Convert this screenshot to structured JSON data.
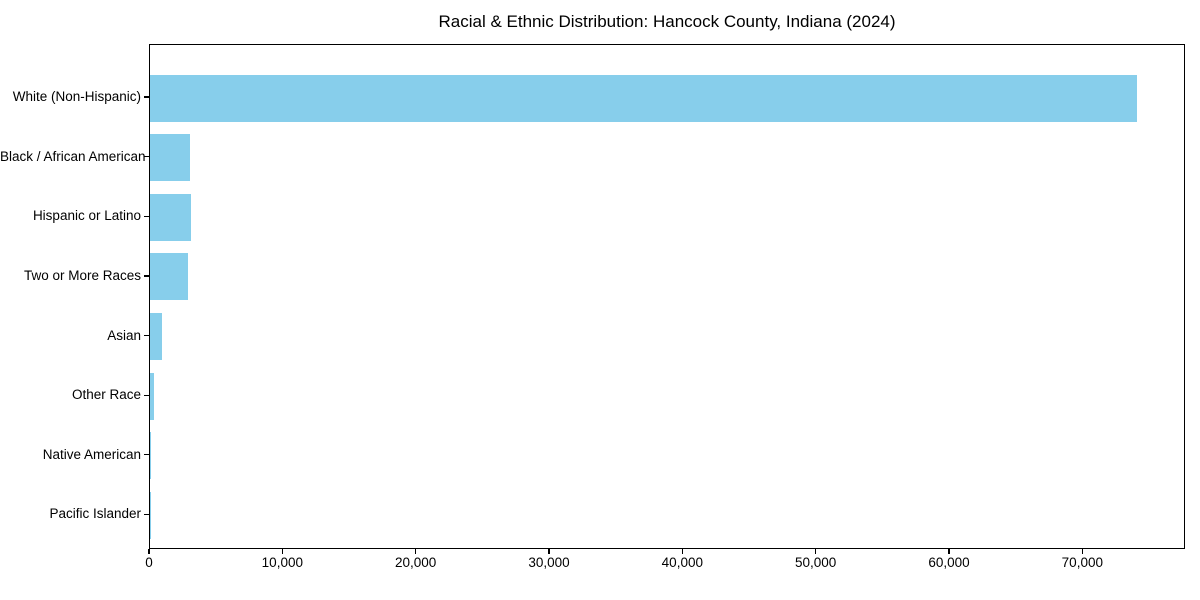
{
  "chart_data": {
    "type": "bar",
    "orientation": "horizontal",
    "title": "Racial & Ethnic Distribution: Hancock County, Indiana (2024)",
    "categories": [
      "White (Non-Hispanic)",
      "Black / African American",
      "Hispanic or Latino",
      "Two or More Races",
      "Asian",
      "Other Race",
      "Native American",
      "Pacific Islander"
    ],
    "values": [
      74000,
      3000,
      3050,
      2850,
      900,
      300,
      50,
      10
    ],
    "xlabel": "",
    "ylabel": "",
    "xlim": [
      0,
      77700
    ],
    "x_ticks": [
      0,
      10000,
      20000,
      30000,
      40000,
      50000,
      60000,
      70000
    ],
    "x_tick_labels": [
      "0",
      "10,000",
      "20,000",
      "30,000",
      "40,000",
      "50,000",
      "60,000",
      "70,000"
    ],
    "grid": false,
    "legend": null,
    "bar_color": "#87CEEB",
    "axis_color": "#000000",
    "background_color": "#ffffff"
  }
}
